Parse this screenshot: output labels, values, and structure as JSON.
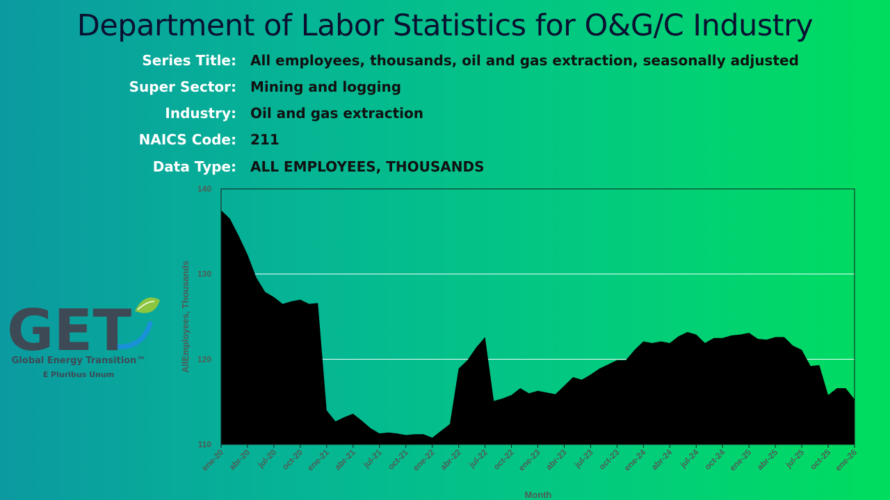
{
  "title": "Department of Labor Statistics for O&G/C Industry",
  "info": [
    {
      "label": "Series Title:",
      "value": "All employees, thousands, oil and gas extraction, seasonally adjusted"
    },
    {
      "label": "Super Sector:",
      "value": "Mining and logging"
    },
    {
      "label": "Industry:",
      "value": "Oil and gas extraction"
    },
    {
      "label": "NAICS Code:",
      "value": "211"
    },
    {
      "label": "Data Type:",
      "value": "ALL EMPLOYEES, THOUSANDS"
    }
  ],
  "logo": {
    "letters": "GET",
    "name": "Global Energy Transition™",
    "motto": "E Pluribus Unum",
    "colors": {
      "letters": "#3d4a55",
      "swoosh": "#1a90d8",
      "leaf": "#8cc63f"
    }
  },
  "chart_data": {
    "type": "area",
    "xlabel": "Month",
    "ylabel": "AllEmployees, Thousands",
    "ylim": [
      110,
      140
    ],
    "yticks": [
      110,
      120,
      130,
      140
    ],
    "xtick_labels": [
      "ene-20",
      "abr-20",
      "jul-20",
      "oct-20",
      "ene-21",
      "abr-21",
      "jul-21",
      "oct-21",
      "ene-22",
      "abr-22",
      "jul-22",
      "oct-22",
      "ene-23",
      "abr-23",
      "jul-23",
      "oct-23",
      "ene-24",
      "abr-24",
      "jul-24",
      "oct-24",
      "ene-25",
      "abr-25",
      "jul-25",
      "oct-25",
      "ene-26"
    ],
    "grid": "horizontal",
    "fill_color": "#000000",
    "values": [
      137.5,
      136.5,
      134.5,
      132.3,
      129.6,
      127.9,
      127.3,
      126.5,
      126.8,
      127.0,
      126.5,
      126.6,
      114.0,
      112.7,
      113.2,
      113.6,
      112.8,
      111.9,
      111.3,
      111.4,
      111.3,
      111.1,
      111.2,
      111.2,
      110.8,
      111.6,
      112.4,
      118.9,
      119.9,
      121.4,
      122.6,
      115.1,
      115.4,
      115.8,
      116.6,
      116.0,
      116.3,
      116.1,
      115.9,
      116.9,
      117.9,
      117.6,
      118.2,
      118.9,
      119.4,
      119.9,
      119.9,
      121.1,
      122.1,
      121.9,
      122.1,
      121.9,
      122.7,
      123.2,
      122.9,
      121.9,
      122.5,
      122.5,
      122.8,
      122.9,
      123.1,
      122.4,
      122.3,
      122.6,
      122.6,
      121.6,
      121.1,
      119.2,
      119.3,
      115.8,
      116.6,
      116.6,
      115.3
    ]
  }
}
